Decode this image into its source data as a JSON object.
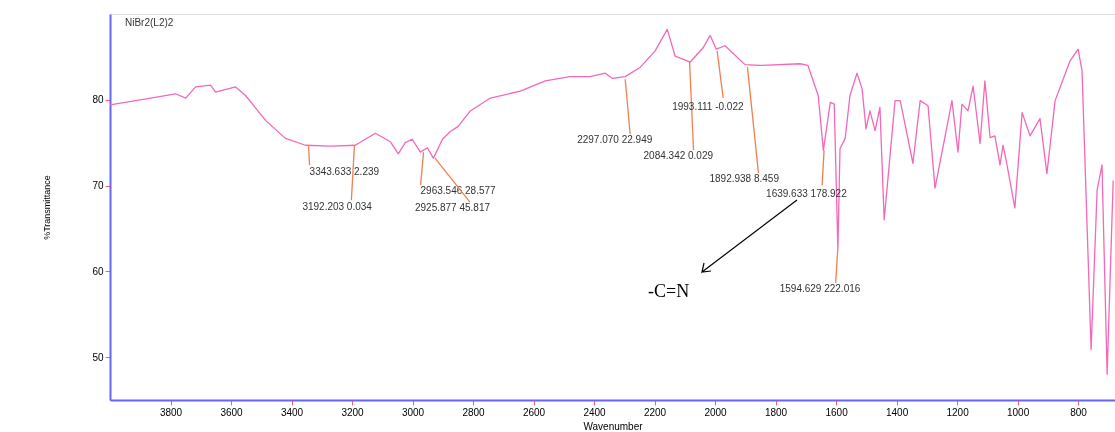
{
  "chart_data": {
    "type": "line",
    "title": "NiBr2(L2)2",
    "xlabel": "Wavenumber",
    "ylabel": "%Transmittance",
    "xlim": [
      4000,
      678
    ],
    "xticks": [
      3800,
      3600,
      3400,
      3200,
      3000,
      2800,
      2600,
      2400,
      2200,
      2000,
      1800,
      1600,
      1400,
      1200,
      1000,
      800
    ],
    "ylim": [
      45,
      90
    ],
    "yticks": [
      50,
      60,
      70,
      80
    ],
    "grid": false,
    "marker": "none",
    "line_style": "solid",
    "x": [
      4000,
      3866,
      3783,
      3750,
      3717,
      3668,
      3651,
      3585,
      3552,
      3486,
      3420,
      3354,
      3271,
      3189,
      3123,
      3073,
      3047,
      3024,
      3001,
      2974,
      2951,
      2931,
      2901,
      2875,
      2849,
      2809,
      2743,
      2644,
      2561,
      2479,
      2413,
      2363,
      2340,
      2297,
      2247,
      2198,
      2158,
      2132,
      2082,
      2039,
      2016,
      1996,
      1967,
      1901,
      1851,
      1719,
      1693,
      1659,
      1642,
      1619,
      1606,
      1594,
      1587,
      1570,
      1554,
      1531,
      1514,
      1501,
      1488,
      1471,
      1455,
      1441,
      1405,
      1388,
      1346,
      1322,
      1296,
      1273,
      1236,
      1217,
      1197,
      1184,
      1164,
      1147,
      1124,
      1108,
      1091,
      1075,
      1058,
      1048,
      1035,
      1009,
      985,
      959,
      926,
      903,
      876,
      827,
      800,
      787,
      757,
      737,
      721,
      704,
      684
    ],
    "series": [
      {
        "color": "#f368b8",
        "values": [
          79.4,
          80.2,
          80.7,
          80.2,
          81.5,
          81.7,
          80.9,
          81.5,
          80.5,
          77.6,
          75.5,
          74.7,
          74.6,
          74.7,
          76.1,
          75.1,
          73.7,
          75.0,
          75.4,
          73.9,
          74.4,
          73.2,
          75.4,
          76.3,
          76.9,
          78.7,
          80.2,
          81.0,
          82.2,
          82.7,
          82.7,
          83.1,
          82.5,
          82.7,
          83.8,
          85.7,
          88.2,
          85.1,
          84.4,
          86.1,
          87.5,
          85.9,
          86.3,
          84.1,
          84.0,
          84.2,
          84.0,
          80.5,
          74.1,
          79.7,
          79.5,
          62.5,
          74.3,
          75.5,
          80.5,
          83.1,
          81.3,
          76.6,
          78.7,
          76.4,
          79.1,
          66.0,
          79.9,
          79.9,
          72.6,
          79.9,
          79.3,
          69.7,
          76.4,
          79.9,
          73.9,
          79.5,
          78.7,
          81.6,
          74.9,
          82.2,
          75.6,
          75.8,
          72.4,
          74.7,
          72.4,
          67.4,
          78.5,
          75.8,
          77.8,
          71.4,
          79.9,
          84.5,
          85.9,
          83.4,
          50.9,
          69.5,
          72.4,
          48.0,
          70.6
        ]
      }
    ],
    "annotations": [
      {
        "text": "3343.633  2.239",
        "x": 3343.633,
        "y": 74.6
      },
      {
        "text": "3192.203  0.034",
        "x": 3192.203,
        "y": 74.6
      },
      {
        "text": "2963.546  28.577",
        "x": 2963.546,
        "y": 73.9
      },
      {
        "text": "2925.877  45.817",
        "x": 2925.877,
        "y": 73.2
      },
      {
        "text": "2297.070  22.949",
        "x": 2297.07,
        "y": 82.4
      },
      {
        "text": "2084.342  0.029",
        "x": 2084.342,
        "y": 84.4
      },
      {
        "text": "1993.111  -0.022",
        "x": 1993.111,
        "y": 85.7
      },
      {
        "text": "1892.938  8.459",
        "x": 1892.938,
        "y": 83.8
      },
      {
        "text": "1639.633  178.922",
        "x": 1639.633,
        "y": 74.1
      },
      {
        "text": "1594.629  222.016",
        "x": 1594.629,
        "y": 62.5
      },
      "-C=N"
    ]
  }
}
